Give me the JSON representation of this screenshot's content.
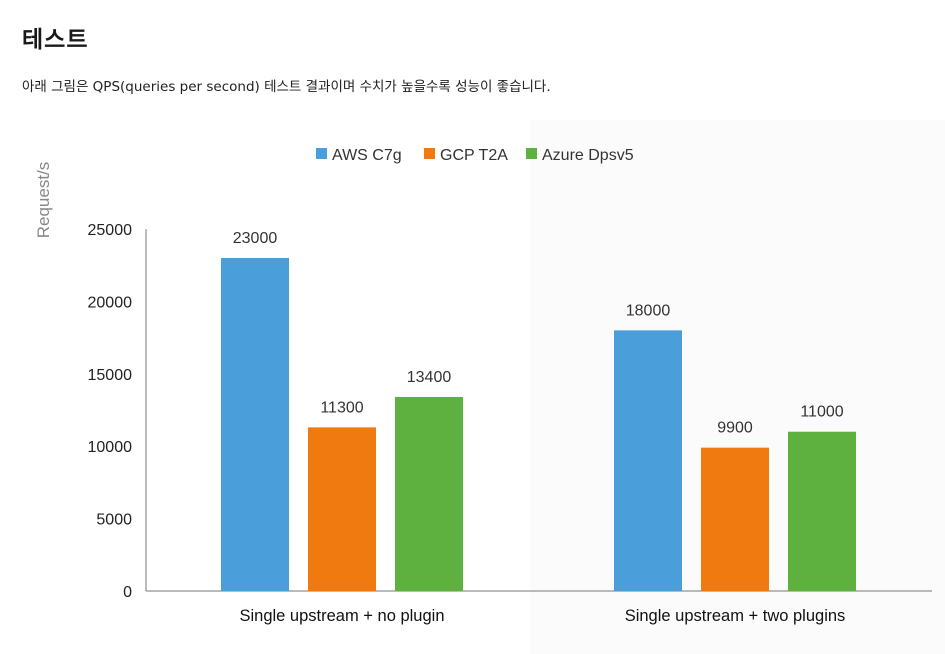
{
  "page": {
    "heading": "테스트",
    "description": "아래 그림은 QPS(queries per second) 테스트 결과이며 수치가 높을수록 성능이 좋습니다."
  },
  "chart_data": {
    "type": "bar",
    "ylabel": "Request/s",
    "ylim": [
      0,
      25000
    ],
    "yticks": [
      0,
      5000,
      10000,
      15000,
      20000,
      25000
    ],
    "grid": false,
    "legend_position": "top-center",
    "categories": [
      "Single upstream + no plugin",
      "Single upstream + two plugins"
    ],
    "series": [
      {
        "name": "AWS C7g",
        "color": "#4a9fdb",
        "values": [
          23000,
          18000
        ]
      },
      {
        "name": "GCP T2A",
        "color": "#f07a10",
        "values": [
          11300,
          9900
        ]
      },
      {
        "name": "Azure Dpsv5",
        "color": "#5eb13e",
        "values": [
          13400,
          11000
        ]
      }
    ]
  }
}
